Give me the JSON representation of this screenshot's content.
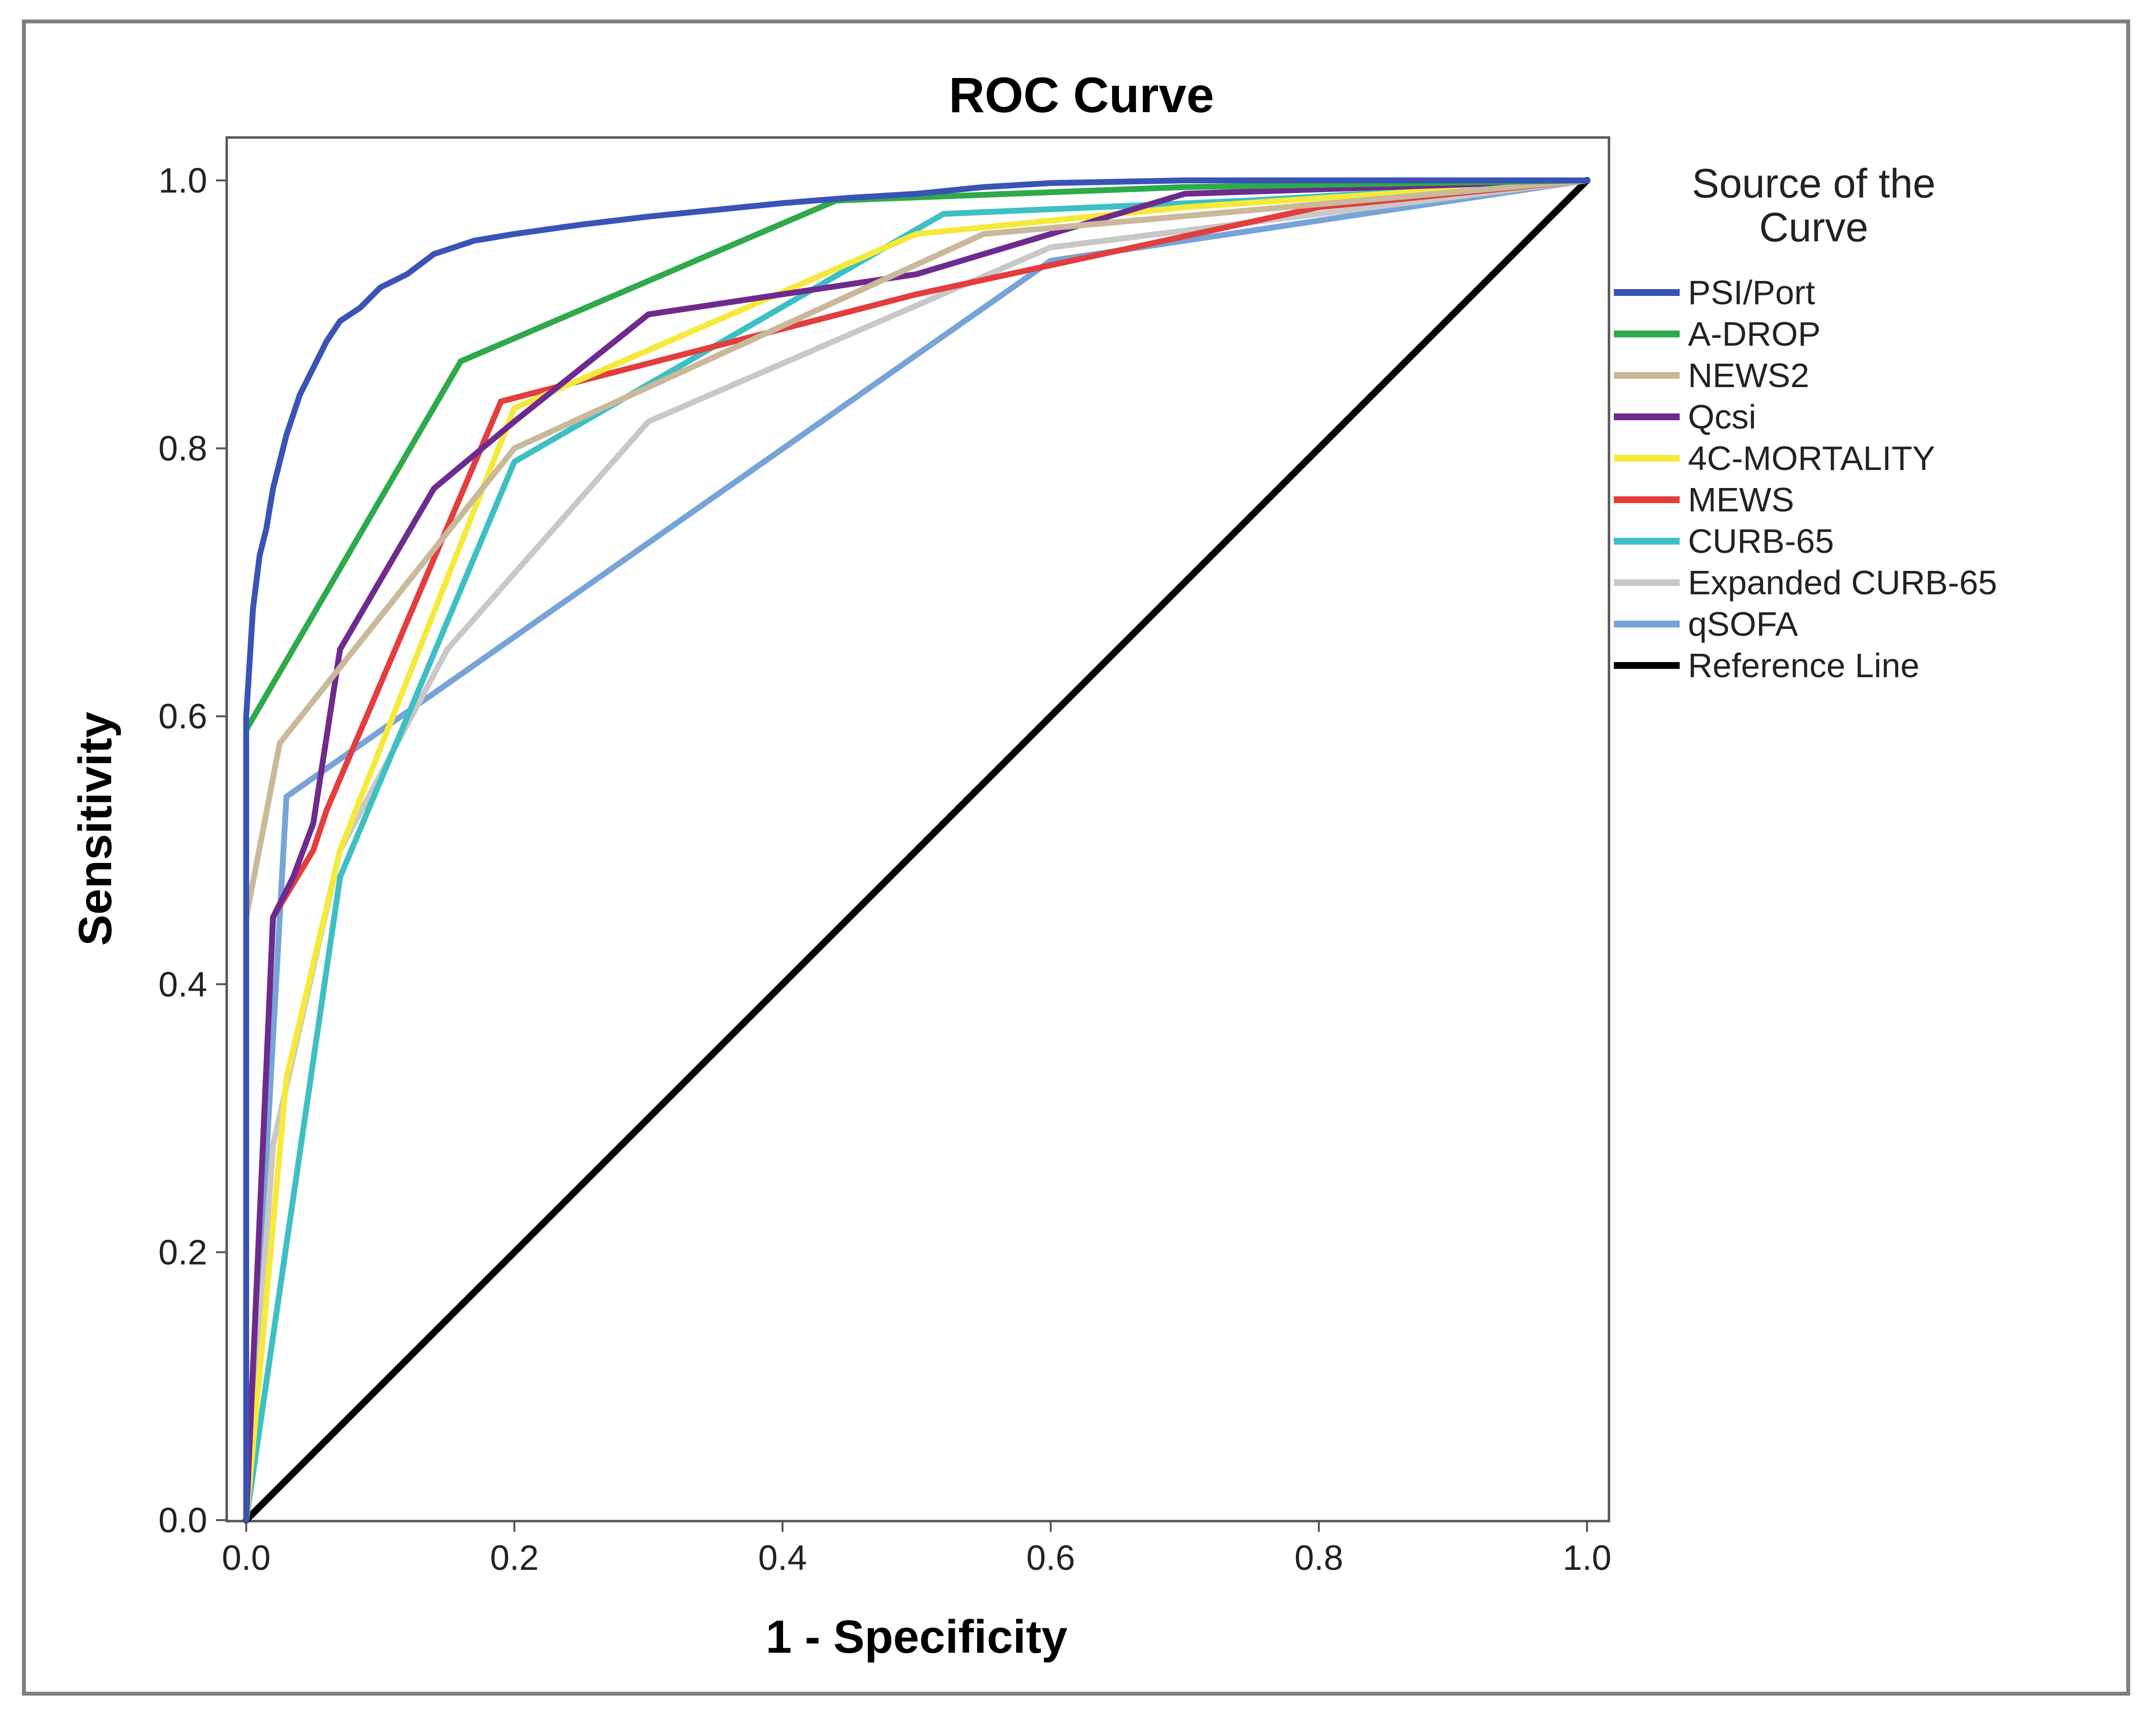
{
  "chart_data": {
    "type": "line",
    "title": "ROC Curve",
    "xlabel": "1 - Specificity",
    "ylabel": "Sensitivity",
    "xlim": [
      0.0,
      1.0
    ],
    "ylim": [
      0.0,
      1.0
    ],
    "xticks": [
      "0.0",
      "0.2",
      "0.4",
      "0.6",
      "0.8",
      "1.0"
    ],
    "yticks": [
      "0.0",
      "0.2",
      "0.4",
      "0.6",
      "0.8",
      "1.0"
    ],
    "grid": false,
    "legend_title": "Source of the Curve",
    "legend_position": "right",
    "series": [
      {
        "name": "PSI/Port",
        "color": "#3953b6",
        "x": [
          0.0,
          0.0,
          0.005,
          0.01,
          0.015,
          0.02,
          0.025,
          0.03,
          0.04,
          0.05,
          0.06,
          0.07,
          0.085,
          0.1,
          0.12,
          0.14,
          0.17,
          0.2,
          0.25,
          0.3,
          0.35,
          0.4,
          0.45,
          0.5,
          0.55,
          0.6,
          0.7,
          0.8,
          0.9,
          1.0
        ],
        "y": [
          0.0,
          0.6,
          0.68,
          0.72,
          0.74,
          0.77,
          0.79,
          0.81,
          0.84,
          0.86,
          0.88,
          0.895,
          0.905,
          0.92,
          0.93,
          0.945,
          0.955,
          0.96,
          0.967,
          0.973,
          0.978,
          0.983,
          0.987,
          0.99,
          0.995,
          0.998,
          1.0,
          1.0,
          1.0,
          1.0
        ]
      },
      {
        "name": "A-DROP",
        "color": "#2eaa4a",
        "x": [
          0.0,
          0.0,
          0.16,
          0.44,
          0.7,
          1.0
        ],
        "y": [
          0.0,
          0.59,
          0.865,
          0.985,
          0.995,
          1.0
        ]
      },
      {
        "name": "NEWS2",
        "color": "#c9b99a",
        "x": [
          0.0,
          0.0,
          0.025,
          0.2,
          0.55,
          1.0
        ],
        "y": [
          0.0,
          0.45,
          0.58,
          0.8,
          0.96,
          1.0
        ]
      },
      {
        "name": "Qcsi",
        "color": "#6e2a8e",
        "x": [
          0.0,
          0.02,
          0.035,
          0.05,
          0.07,
          0.14,
          0.2,
          0.3,
          0.5,
          0.7,
          1.0
        ],
        "y": [
          0.0,
          0.45,
          0.48,
          0.52,
          0.65,
          0.77,
          0.82,
          0.9,
          0.93,
          0.99,
          1.0
        ]
      },
      {
        "name": "4C-MORTALITY",
        "color": "#f5ea3c",
        "x": [
          0.0,
          0.03,
          0.07,
          0.2,
          0.5,
          0.7,
          1.0
        ],
        "y": [
          0.0,
          0.33,
          0.5,
          0.83,
          0.96,
          0.98,
          1.0
        ]
      },
      {
        "name": "MEWS",
        "color": "#e33d3d",
        "x": [
          0.0,
          0.02,
          0.05,
          0.06,
          0.19,
          0.5,
          0.8,
          1.0
        ],
        "y": [
          0.0,
          0.45,
          0.5,
          0.53,
          0.835,
          0.915,
          0.98,
          1.0
        ]
      },
      {
        "name": "CURB-65",
        "color": "#3dbfc4",
        "x": [
          0.0,
          0.07,
          0.2,
          0.52,
          0.75,
          1.0
        ],
        "y": [
          0.0,
          0.48,
          0.79,
          0.975,
          0.985,
          1.0
        ]
      },
      {
        "name": "Expanded CURB-65",
        "color": "#c8c8c8",
        "x": [
          0.0,
          0.02,
          0.07,
          0.15,
          0.3,
          0.6,
          1.0
        ],
        "y": [
          0.0,
          0.28,
          0.5,
          0.65,
          0.82,
          0.95,
          1.0
        ]
      },
      {
        "name": "qSOFA",
        "color": "#77a4d8",
        "x": [
          0.0,
          0.03,
          0.6,
          1.0
        ],
        "y": [
          0.0,
          0.54,
          0.94,
          1.0
        ]
      },
      {
        "name": "Reference Line",
        "color": "#000000",
        "x": [
          0.0,
          1.0
        ],
        "y": [
          0.0,
          1.0
        ]
      }
    ]
  }
}
